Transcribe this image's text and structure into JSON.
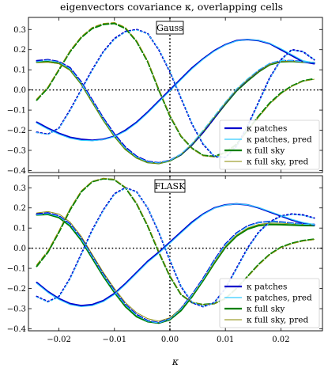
{
  "chart_data": {
    "title": "eigenvectors covariance κ, overlapping cells",
    "xlabel": "κ",
    "xlim": [
      -0.0255,
      0.0275
    ],
    "xticks": [
      -0.02,
      -0.01,
      0.0,
      0.01,
      0.02
    ],
    "xtick_labels": [
      "−0.02",
      "−0.01",
      "0.00",
      "0.01",
      "0.02"
    ],
    "ylim": [
      -0.41,
      0.36
    ],
    "yticks": [
      -0.4,
      -0.3,
      -0.2,
      -0.1,
      0.0,
      0.1,
      0.2,
      0.3
    ],
    "ytick_labels": [
      "−0.4",
      "−0.3",
      "−0.2",
      "−0.1",
      "0.0",
      "0.1",
      "0.2",
      "0.3"
    ],
    "reference_lines": {
      "horizontal_y": 0.0,
      "vertical_x": 0.0,
      "style": "dotted"
    },
    "legend_placement": "lower-right",
    "colors": {
      "patches": "#0000cc",
      "patches_pred": "#33ccff",
      "fullsky": "#008000",
      "fullsky_pred": "#8a8a00"
    },
    "panels": [
      {
        "label": "Gauss",
        "legend": [
          {
            "label": "κ patches",
            "color": "#0000cc",
            "width": 2.2
          },
          {
            "label": "κ patches, pred",
            "color": "#33ccff",
            "width": 1.2
          },
          {
            "label": "κ full sky",
            "color": "#008000",
            "width": 2.2
          },
          {
            "label": "κ full sky, pred",
            "color": "#8a8a00",
            "width": 1.0
          }
        ],
        "x": [
          -0.024,
          -0.022,
          -0.02,
          -0.018,
          -0.016,
          -0.014,
          -0.012,
          -0.01,
          -0.008,
          -0.006,
          -0.004,
          -0.002,
          0.0,
          0.002,
          0.004,
          0.006,
          0.008,
          0.01,
          0.012,
          0.014,
          0.016,
          0.018,
          0.02,
          0.022,
          0.024,
          0.026
        ],
        "series": [
          {
            "vector": 1,
            "kind": "patches",
            "style": "solid",
            "values": [
              -0.16,
              -0.19,
              -0.215,
              -0.235,
              -0.245,
              -0.25,
              -0.245,
              -0.23,
              -0.2,
              -0.16,
              -0.11,
              -0.055,
              0.0,
              0.055,
              0.11,
              0.155,
              0.195,
              0.225,
              0.245,
              0.25,
              0.245,
              0.23,
              0.2,
              0.17,
              0.14,
              0.13
            ]
          },
          {
            "vector": 1,
            "kind": "patches_pred",
            "style": "solid",
            "values": [
              -0.165,
              -0.195,
              -0.22,
              -0.24,
              -0.25,
              -0.252,
              -0.247,
              -0.232,
              -0.205,
              -0.165,
              -0.115,
              -0.06,
              -0.005,
              0.05,
              0.105,
              0.152,
              0.192,
              0.223,
              0.243,
              0.25,
              0.247,
              0.232,
              0.205,
              0.175,
              0.145,
              0.135
            ]
          },
          {
            "vector": 2,
            "kind": "patches",
            "style": "dashed",
            "values": [
              0.145,
              0.15,
              0.14,
              0.11,
              0.04,
              -0.05,
              -0.14,
              -0.22,
              -0.285,
              -0.33,
              -0.355,
              -0.362,
              -0.35,
              -0.32,
              -0.27,
              -0.21,
              -0.14,
              -0.065,
              0.0,
              0.05,
              0.095,
              0.13,
              0.145,
              0.145,
              0.14,
              0.135
            ]
          },
          {
            "vector": 2,
            "kind": "patches_pred",
            "style": "dashed",
            "values": [
              0.14,
              0.148,
              0.138,
              0.105,
              0.035,
              -0.055,
              -0.145,
              -0.225,
              -0.29,
              -0.333,
              -0.357,
              -0.363,
              -0.35,
              -0.318,
              -0.265,
              -0.2,
              -0.13,
              -0.06,
              0.005,
              0.055,
              0.1,
              0.132,
              0.146,
              0.145,
              0.14,
              0.136
            ]
          },
          {
            "vector": 2,
            "kind": "fullsky",
            "style": "solid",
            "values": [
              0.138,
              0.14,
              0.132,
              0.1,
              0.03,
              -0.06,
              -0.15,
              -0.23,
              -0.295,
              -0.337,
              -0.36,
              -0.365,
              -0.352,
              -0.322,
              -0.272,
              -0.21,
              -0.14,
              -0.07,
              -0.005,
              0.045,
              0.09,
              0.125,
              0.14,
              0.142,
              0.138,
              0.135
            ]
          },
          {
            "vector": 2,
            "kind": "fullsky_pred",
            "style": "solid",
            "values": [
              0.135,
              0.138,
              0.13,
              0.098,
              0.028,
              -0.062,
              -0.152,
              -0.232,
              -0.297,
              -0.339,
              -0.361,
              -0.366,
              -0.352,
              -0.32,
              -0.268,
              -0.205,
              -0.135,
              -0.065,
              0.0,
              0.05,
              0.093,
              0.127,
              0.141,
              0.143,
              0.139,
              0.136
            ]
          },
          {
            "vector": 3,
            "kind": "patches",
            "style": "dotted",
            "values": [
              -0.21,
              -0.22,
              -0.19,
              -0.1,
              0.0,
              0.1,
              0.19,
              0.255,
              0.29,
              0.3,
              0.28,
              0.2,
              0.09,
              -0.04,
              -0.17,
              -0.27,
              -0.33,
              -0.335,
              -0.28,
              -0.18,
              -0.06,
              0.06,
              0.15,
              0.2,
              0.19,
              0.15
            ]
          },
          {
            "vector": 3,
            "kind": "patches_pred",
            "style": "dotted",
            "values": [
              -0.212,
              -0.222,
              -0.193,
              -0.105,
              -0.005,
              0.095,
              0.185,
              0.25,
              0.287,
              0.298,
              0.278,
              0.205,
              0.095,
              -0.035,
              -0.165,
              -0.265,
              -0.327,
              -0.335,
              -0.283,
              -0.185,
              -0.065,
              0.055,
              0.147,
              0.197,
              0.19,
              0.152
            ]
          },
          {
            "vector": 4,
            "kind": "fullsky",
            "style": "dashed",
            "values": [
              -0.05,
              0.01,
              0.1,
              0.19,
              0.26,
              0.305,
              0.325,
              0.33,
              0.305,
              0.24,
              0.14,
              0.0,
              -0.13,
              -0.23,
              -0.29,
              -0.325,
              -0.33,
              -0.31,
              -0.27,
              -0.2,
              -0.13,
              -0.065,
              -0.015,
              0.02,
              0.045,
              0.055
            ]
          },
          {
            "vector": 4,
            "kind": "fullsky_pred",
            "style": "dashed",
            "values": [
              -0.045,
              0.015,
              0.105,
              0.195,
              0.265,
              0.31,
              0.33,
              0.335,
              0.31,
              0.245,
              0.145,
              0.005,
              -0.125,
              -0.228,
              -0.292,
              -0.327,
              -0.333,
              -0.315,
              -0.275,
              -0.205,
              -0.135,
              -0.07,
              -0.02,
              0.018,
              0.043,
              0.053
            ]
          }
        ]
      },
      {
        "label": "FLASK",
        "legend": [
          {
            "label": "κ patches",
            "color": "#0000cc",
            "width": 2.2
          },
          {
            "label": "κ patches, pred",
            "color": "#33ccff",
            "width": 1.2
          },
          {
            "label": "κ full sky",
            "color": "#008000",
            "width": 2.2
          },
          {
            "label": "κ full sky, pred",
            "color": "#8a8a00",
            "width": 1.0
          }
        ],
        "x": [
          -0.024,
          -0.022,
          -0.02,
          -0.018,
          -0.016,
          -0.014,
          -0.012,
          -0.01,
          -0.008,
          -0.006,
          -0.004,
          -0.002,
          0.0,
          0.002,
          0.004,
          0.006,
          0.008,
          0.01,
          0.012,
          0.014,
          0.016,
          0.018,
          0.02,
          0.022,
          0.024,
          0.026
        ],
        "series": [
          {
            "vector": 1,
            "kind": "patches",
            "style": "solid",
            "values": [
              -0.17,
              -0.215,
              -0.25,
              -0.275,
              -0.285,
              -0.28,
              -0.26,
              -0.225,
              -0.175,
              -0.12,
              -0.065,
              -0.02,
              0.03,
              0.08,
              0.13,
              0.17,
              0.2,
              0.215,
              0.22,
              0.215,
              0.2,
              0.18,
              0.16,
              0.14,
              0.125,
              0.115
            ]
          },
          {
            "vector": 1,
            "kind": "patches_pred",
            "style": "solid",
            "values": [
              -0.175,
              -0.22,
              -0.255,
              -0.28,
              -0.29,
              -0.285,
              -0.265,
              -0.23,
              -0.18,
              -0.125,
              -0.07,
              -0.025,
              0.025,
              0.075,
              0.125,
              0.167,
              0.198,
              0.214,
              0.22,
              0.216,
              0.202,
              0.183,
              0.163,
              0.143,
              0.128,
              0.118
            ]
          },
          {
            "vector": 2,
            "kind": "patches",
            "style": "dashed",
            "values": [
              0.17,
              0.175,
              0.16,
              0.12,
              0.05,
              -0.04,
              -0.13,
              -0.21,
              -0.28,
              -0.33,
              -0.36,
              -0.37,
              -0.35,
              -0.3,
              -0.23,
              -0.15,
              -0.06,
              0.02,
              0.075,
              0.11,
              0.128,
              0.133,
              0.13,
              0.124,
              0.12,
              0.118
            ]
          },
          {
            "vector": 2,
            "kind": "patches_pred",
            "style": "dashed",
            "values": [
              0.165,
              0.172,
              0.157,
              0.117,
              0.047,
              -0.043,
              -0.133,
              -0.213,
              -0.283,
              -0.333,
              -0.362,
              -0.371,
              -0.351,
              -0.302,
              -0.232,
              -0.153,
              -0.063,
              0.017,
              0.073,
              0.108,
              0.127,
              0.132,
              0.129,
              0.123,
              0.119,
              0.117
            ]
          },
          {
            "vector": 2,
            "kind": "fullsky",
            "style": "solid",
            "values": [
              0.165,
              0.168,
              0.152,
              0.11,
              0.04,
              -0.05,
              -0.14,
              -0.22,
              -0.29,
              -0.34,
              -0.365,
              -0.372,
              -0.355,
              -0.31,
              -0.24,
              -0.16,
              -0.075,
              0.005,
              0.06,
              0.095,
              0.112,
              0.118,
              0.117,
              0.115,
              0.113,
              0.112
            ]
          },
          {
            "vector": 2,
            "kind": "fullsky_pred",
            "style": "solid",
            "values": [
              0.175,
              0.182,
              0.17,
              0.13,
              0.06,
              -0.03,
              -0.12,
              -0.2,
              -0.27,
              -0.32,
              -0.35,
              -0.362,
              -0.345,
              -0.3,
              -0.235,
              -0.155,
              -0.07,
              0.01,
              0.065,
              0.1,
              0.118,
              0.125,
              0.124,
              0.121,
              0.118,
              0.116
            ]
          },
          {
            "vector": 3,
            "kind": "patches",
            "style": "dotted",
            "values": [
              -0.24,
              -0.265,
              -0.24,
              -0.15,
              -0.03,
              0.09,
              0.19,
              0.27,
              0.3,
              0.28,
              0.2,
              0.08,
              -0.06,
              -0.19,
              -0.27,
              -0.29,
              -0.27,
              -0.2,
              -0.1,
              0.0,
              0.08,
              0.13,
              0.16,
              0.17,
              0.165,
              0.15
            ]
          },
          {
            "vector": 3,
            "kind": "patches_pred",
            "style": "dotted",
            "values": [
              -0.243,
              -0.268,
              -0.243,
              -0.155,
              -0.035,
              0.085,
              0.186,
              0.266,
              0.297,
              0.278,
              0.203,
              0.085,
              -0.055,
              -0.185,
              -0.267,
              -0.289,
              -0.271,
              -0.203,
              -0.105,
              -0.005,
              0.076,
              0.127,
              0.157,
              0.168,
              0.163,
              0.149
            ]
          },
          {
            "vector": 4,
            "kind": "fullsky",
            "style": "dashed",
            "values": [
              -0.09,
              -0.02,
              0.08,
              0.19,
              0.28,
              0.33,
              0.345,
              0.34,
              0.3,
              0.22,
              0.11,
              -0.02,
              -0.14,
              -0.23,
              -0.27,
              -0.28,
              -0.275,
              -0.25,
              -0.2,
              -0.14,
              -0.08,
              -0.03,
              0.005,
              0.025,
              0.038,
              0.045
            ]
          },
          {
            "vector": 4,
            "kind": "fullsky_pred",
            "style": "dashed",
            "values": [
              -0.082,
              -0.013,
              0.087,
              0.197,
              0.285,
              0.333,
              0.347,
              0.342,
              0.303,
              0.225,
              0.115,
              -0.015,
              -0.135,
              -0.227,
              -0.268,
              -0.279,
              -0.276,
              -0.252,
              -0.203,
              -0.143,
              -0.083,
              -0.033,
              0.002,
              0.022,
              0.035,
              0.043
            ]
          }
        ]
      }
    ]
  }
}
